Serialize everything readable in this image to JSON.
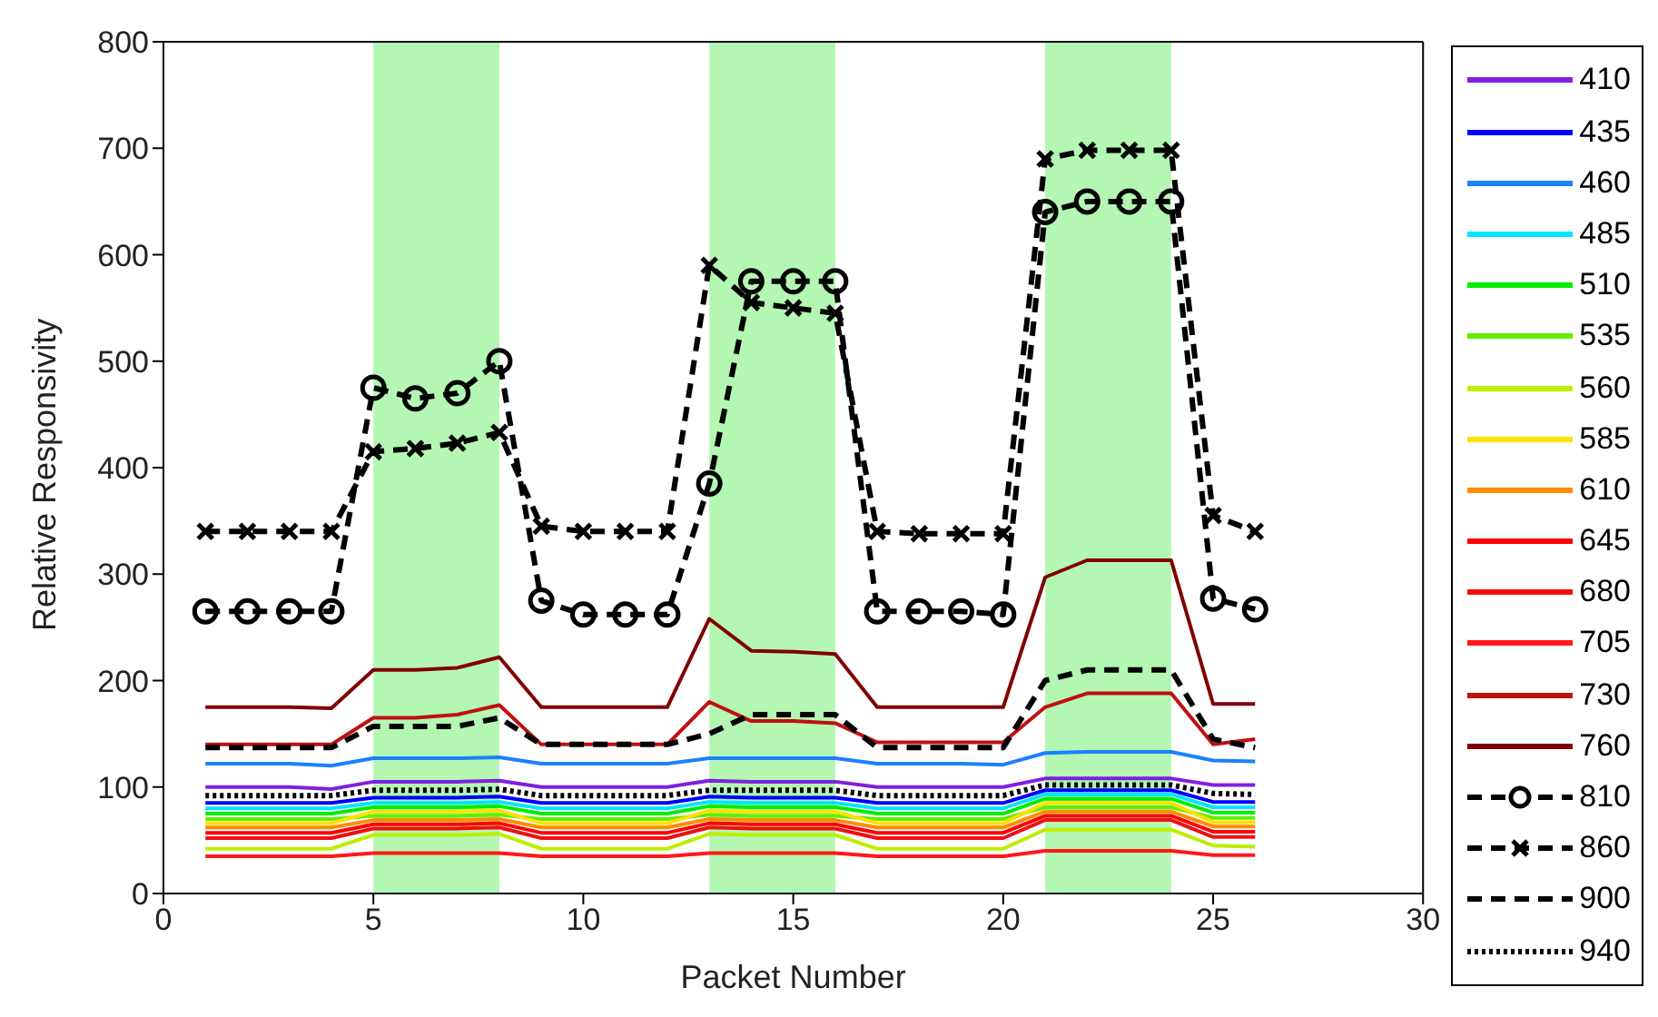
{
  "chart_data": {
    "type": "line",
    "xlabel": "Packet Number",
    "ylabel": "Relative Responsivity",
    "x": [
      1,
      2,
      3,
      4,
      5,
      6,
      7,
      8,
      9,
      10,
      11,
      12,
      13,
      14,
      15,
      16,
      17,
      18,
      19,
      20,
      21,
      22,
      23,
      24,
      25,
      26
    ],
    "xlim": [
      0,
      30
    ],
    "xticks": [
      0,
      5,
      10,
      15,
      20,
      25,
      30
    ],
    "ylim": [
      0,
      800
    ],
    "yticks": [
      0,
      100,
      200,
      300,
      400,
      500,
      600,
      700,
      800
    ],
    "grid": false,
    "legend": "right",
    "marker": "none",
    "line_style": "solid",
    "bands": [
      {
        "axis": "x",
        "from": 5,
        "to": 8,
        "color": "#b3f7b3"
      },
      {
        "axis": "x",
        "from": 13,
        "to": 16,
        "color": "#b3f7b3"
      },
      {
        "axis": "x",
        "from": 21,
        "to": 24,
        "color": "#b3f7b3"
      }
    ],
    "series": [
      {
        "name": "410",
        "color": "#8020e0",
        "values": [
          100,
          100,
          100,
          98,
          105,
          105,
          105,
          106,
          100,
          100,
          100,
          100,
          106,
          105,
          105,
          105,
          100,
          100,
          100,
          100,
          108,
          108,
          108,
          108,
          102,
          102
        ]
      },
      {
        "name": "435",
        "color": "#0000ff",
        "values": [
          85,
          85,
          85,
          85,
          90,
          90,
          90,
          91,
          85,
          85,
          85,
          85,
          91,
          90,
          90,
          90,
          85,
          85,
          85,
          85,
          97,
          97,
          97,
          97,
          86,
          86
        ]
      },
      {
        "name": "460",
        "color": "#1a80ff",
        "values": [
          122,
          122,
          122,
          120,
          127,
          127,
          127,
          128,
          122,
          122,
          122,
          122,
          127,
          127,
          127,
          127,
          122,
          122,
          122,
          121,
          132,
          133,
          133,
          133,
          125,
          124
        ]
      },
      {
        "name": "485",
        "color": "#00e5ff",
        "values": [
          80,
          80,
          80,
          80,
          85,
          85,
          85,
          86,
          80,
          80,
          80,
          80,
          86,
          85,
          85,
          85,
          80,
          80,
          80,
          80,
          93,
          93,
          93,
          93,
          81,
          81
        ]
      },
      {
        "name": "510",
        "color": "#00ee00",
        "values": [
          75,
          75,
          75,
          75,
          81,
          81,
          81,
          82,
          75,
          75,
          75,
          75,
          82,
          81,
          81,
          81,
          75,
          75,
          75,
          75,
          89,
          89,
          89,
          89,
          76,
          76
        ]
      },
      {
        "name": "535",
        "color": "#60ee00",
        "values": [
          70,
          70,
          70,
          70,
          73,
          73,
          73,
          74,
          70,
          70,
          70,
          70,
          74,
          73,
          73,
          73,
          70,
          70,
          70,
          70,
          81,
          81,
          81,
          81,
          71,
          71
        ]
      },
      {
        "name": "560",
        "color": "#bbee00",
        "values": [
          42,
          42,
          42,
          42,
          55,
          55,
          55,
          56,
          42,
          42,
          42,
          42,
          56,
          55,
          55,
          55,
          42,
          42,
          42,
          42,
          60,
          60,
          60,
          60,
          45,
          44
        ]
      },
      {
        "name": "585",
        "color": "#ffe000",
        "values": [
          66,
          66,
          66,
          66,
          77,
          77,
          77,
          78,
          66,
          66,
          66,
          66,
          78,
          77,
          77,
          77,
          66,
          66,
          66,
          66,
          85,
          85,
          85,
          85,
          67,
          67
        ]
      },
      {
        "name": "610",
        "color": "#ff8c00",
        "values": [
          62,
          62,
          62,
          62,
          69,
          69,
          69,
          70,
          62,
          62,
          62,
          62,
          70,
          69,
          69,
          69,
          62,
          62,
          62,
          62,
          77,
          77,
          77,
          77,
          63,
          63
        ]
      },
      {
        "name": "645",
        "color": "#ff0000",
        "values": [
          57,
          57,
          57,
          57,
          65,
          65,
          65,
          66,
          57,
          57,
          57,
          57,
          66,
          65,
          65,
          65,
          57,
          57,
          57,
          57,
          73,
          73,
          73,
          73,
          58,
          58
        ]
      },
      {
        "name": "680",
        "color": "#f01010",
        "values": [
          52,
          52,
          52,
          52,
          61,
          61,
          61,
          62,
          52,
          52,
          52,
          52,
          62,
          61,
          61,
          61,
          52,
          52,
          52,
          52,
          69,
          69,
          69,
          69,
          53,
          53
        ]
      },
      {
        "name": "705",
        "color": "#ff1818",
        "values": [
          35,
          35,
          35,
          35,
          38,
          38,
          38,
          38,
          35,
          35,
          35,
          35,
          38,
          38,
          38,
          38,
          35,
          35,
          35,
          35,
          40,
          40,
          40,
          40,
          36,
          36
        ]
      },
      {
        "name": "730",
        "color": "#c01010",
        "values": [
          140,
          140,
          140,
          140,
          165,
          165,
          168,
          177,
          140,
          140,
          140,
          140,
          180,
          162,
          162,
          160,
          142,
          142,
          142,
          142,
          175,
          188,
          188,
          188,
          140,
          145
        ]
      },
      {
        "name": "760",
        "color": "#800000",
        "values": [
          175,
          175,
          175,
          174,
          210,
          210,
          212,
          222,
          175,
          175,
          175,
          175,
          258,
          228,
          227,
          225,
          175,
          175,
          175,
          175,
          297,
          313,
          313,
          313,
          178,
          178
        ]
      },
      {
        "name": "810",
        "color": "#000000",
        "marker": "circle",
        "line_style": "dashed",
        "values": [
          265,
          265,
          265,
          265,
          475,
          465,
          470,
          500,
          275,
          262,
          262,
          262,
          385,
          575,
          575,
          575,
          265,
          265,
          265,
          262,
          640,
          650,
          650,
          650,
          277,
          267
        ]
      },
      {
        "name": "860",
        "color": "#000000",
        "marker": "cross",
        "line_style": "dashed",
        "values": [
          340,
          340,
          340,
          340,
          415,
          418,
          423,
          433,
          345,
          340,
          340,
          340,
          590,
          555,
          550,
          545,
          340,
          338,
          338,
          338,
          690,
          698,
          698,
          698,
          355,
          340
        ]
      },
      {
        "name": "900",
        "color": "#000000",
        "line_style": "dashed",
        "values": [
          137,
          137,
          137,
          137,
          157,
          157,
          157,
          165,
          140,
          140,
          140,
          140,
          150,
          168,
          168,
          168,
          137,
          137,
          137,
          137,
          200,
          210,
          210,
          210,
          145,
          137
        ]
      },
      {
        "name": "940",
        "color": "#000000",
        "line_style": "dotted",
        "values": [
          92,
          92,
          92,
          92,
          97,
          97,
          97,
          98,
          92,
          92,
          92,
          92,
          97,
          97,
          97,
          97,
          92,
          92,
          92,
          92,
          102,
          102,
          102,
          102,
          94,
          93
        ]
      }
    ]
  }
}
